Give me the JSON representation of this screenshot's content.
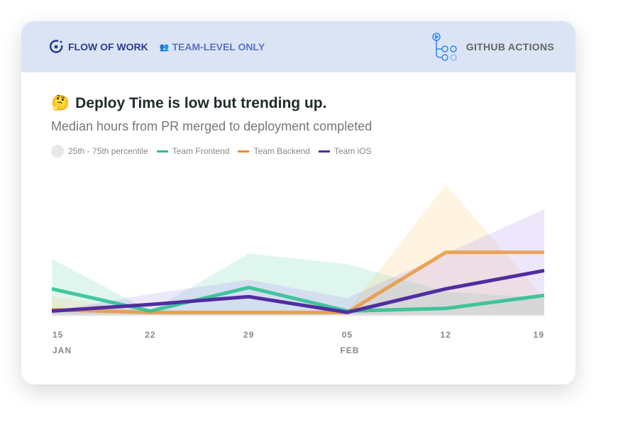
{
  "header": {
    "brand": "FLOW OF WORK",
    "scope": "TEAM-LEVEL ONLY",
    "source": "GITHUB ACTIONS"
  },
  "title": "Deploy Time is low but trending up.",
  "title_emoji": "🤔",
  "subtitle": "Median hours from PR merged to deployment completed",
  "chart_data": {
    "type": "line",
    "title": "Deploy Time is low but trending up.",
    "ylabel": "Median hours",
    "xlabel": "",
    "x": [
      "15",
      "22",
      "29",
      "05",
      "12",
      "19"
    ],
    "x_month_labels": [
      {
        "index": 0,
        "label": "JAN"
      },
      {
        "index": 3,
        "label": "FEB"
      }
    ],
    "ylim": [
      0,
      10
    ],
    "grid": false,
    "legend": {
      "placement": "top-left",
      "band_label": "25th - 75th percentile"
    },
    "series": [
      {
        "name": "Team Frontend",
        "color": "#25c08f",
        "values": [
          2.0,
          0.3,
          2.1,
          0.3,
          0.5,
          1.5
        ],
        "band_upper": [
          4.3,
          0.3,
          4.7,
          3.9,
          1.8,
          1.3
        ],
        "band_lower": [
          0,
          0,
          0,
          0,
          0,
          0
        ]
      },
      {
        "name": "Team Backend",
        "color": "#ea8f2a",
        "values": [
          0.4,
          0.2,
          0.2,
          0.2,
          4.8,
          4.8
        ],
        "band_upper": [
          1.4,
          0.2,
          0.2,
          0.3,
          10,
          1.3
        ],
        "band_lower": [
          0,
          0,
          0,
          0,
          0,
          0
        ]
      },
      {
        "name": "Team iOS",
        "color": "#512da0",
        "values": [
          0.3,
          0.8,
          1.4,
          0.2,
          2.0,
          3.4
        ],
        "band_upper": [
          0.3,
          1.6,
          2.7,
          1.3,
          4.7,
          8.1
        ],
        "band_lower": [
          0,
          0,
          0,
          0,
          0,
          0
        ]
      }
    ]
  }
}
